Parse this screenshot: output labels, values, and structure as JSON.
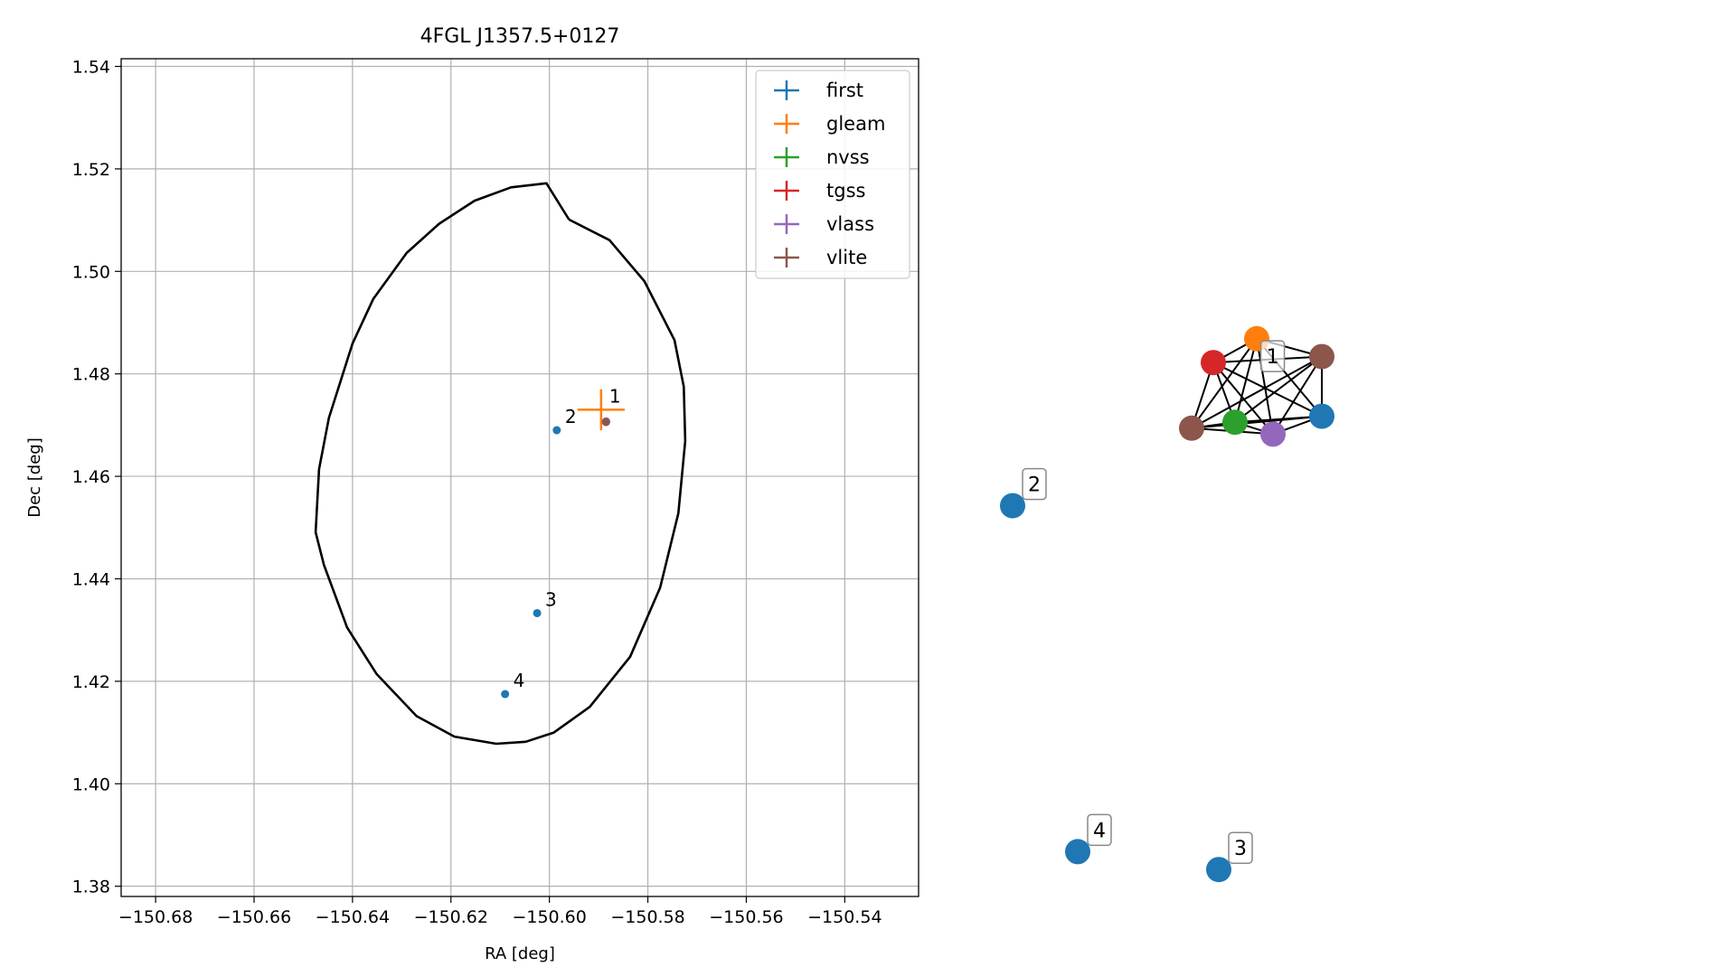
{
  "chart_data": [
    {
      "type": "scatter",
      "title": "4FGL J1357.5+0127",
      "xlabel": "RA [deg]",
      "ylabel": "Dec [deg]",
      "xlim": [
        -150.687,
        -150.525
      ],
      "ylim": [
        1.378,
        1.5415
      ],
      "xticks": [
        -150.68,
        -150.66,
        -150.64,
        -150.62,
        -150.6,
        -150.58,
        -150.56,
        -150.54
      ],
      "xtick_labels": [
        "−150.68",
        "−150.66",
        "−150.64",
        "−150.62",
        "−150.60",
        "−150.58",
        "−150.56",
        "−150.54"
      ],
      "yticks": [
        1.38,
        1.4,
        1.42,
        1.44,
        1.46,
        1.48,
        1.5,
        1.52,
        1.54
      ],
      "ytick_labels": [
        "1.38",
        "1.40",
        "1.42",
        "1.44",
        "1.46",
        "1.48",
        "1.50",
        "1.52",
        "1.54"
      ],
      "grid": true,
      "legend_position": "top-right",
      "series": [
        {
          "name": "first",
          "color": "#1f77b4",
          "points": [
            {
              "ra": -150.5985,
              "dec": 1.469,
              "label": "2"
            },
            {
              "ra": -150.6025,
              "dec": 1.4333,
              "label": "3"
            },
            {
              "ra": -150.609,
              "dec": 1.4175,
              "label": "4"
            },
            {
              "ra": -150.5885,
              "dec": 1.4706,
              "label": ""
            }
          ]
        },
        {
          "name": "gleam",
          "color": "#ff7f0e",
          "points": [
            {
              "ra": -150.5895,
              "dec": 1.473,
              "label": "1",
              "err_ra": 0.0048,
              "err_dec": 0.004
            }
          ]
        },
        {
          "name": "nvss",
          "color": "#2ca02c",
          "points": [
            {
              "ra": -150.5885,
              "dec": 1.4707,
              "label": ""
            }
          ]
        },
        {
          "name": "tgss",
          "color": "#d62728",
          "points": [
            {
              "ra": -150.5885,
              "dec": 1.4707,
              "label": ""
            }
          ]
        },
        {
          "name": "vlass",
          "color": "#9467bd",
          "points": [
            {
              "ra": -150.5885,
              "dec": 1.4707,
              "label": ""
            }
          ]
        },
        {
          "name": "vlite",
          "color": "#8c564b",
          "points": [
            {
              "ra": -150.5885,
              "dec": 1.4706,
              "label": ""
            }
          ]
        }
      ],
      "ellipse": {
        "center_ra": -150.6006,
        "center_dec": 1.4592,
        "color": "#000000",
        "outline": [
          [
            -150.596,
            1.5101
          ],
          [
            -150.5878,
            1.5061
          ],
          [
            -150.5807,
            1.4981
          ],
          [
            -150.5746,
            1.4866
          ],
          [
            -150.5727,
            1.4775
          ],
          [
            -150.5724,
            1.4669
          ],
          [
            -150.5738,
            1.4528
          ],
          [
            -150.5775,
            1.4383
          ],
          [
            -150.5836,
            1.4248
          ],
          [
            -150.5918,
            1.415
          ],
          [
            -150.5991,
            1.41
          ],
          [
            -150.6048,
            1.4082
          ],
          [
            -150.6108,
            1.4078
          ],
          [
            -150.6193,
            1.4092
          ],
          [
            -150.627,
            1.4132
          ],
          [
            -150.6351,
            1.4214
          ],
          [
            -150.6411,
            1.4305
          ],
          [
            -150.6458,
            1.4427
          ],
          [
            -150.6475,
            1.4491
          ],
          [
            -150.6468,
            1.4614
          ],
          [
            -150.6448,
            1.4714
          ],
          [
            -150.64,
            1.4859
          ],
          [
            -150.6358,
            1.4946
          ],
          [
            -150.629,
            1.5036
          ],
          [
            -150.6224,
            1.5093
          ],
          [
            -150.6152,
            1.5138
          ],
          [
            -150.6078,
            1.5164
          ],
          [
            -150.6006,
            1.5172
          ],
          [
            -150.596,
            1.5101
          ]
        ]
      }
    },
    {
      "type": "network",
      "nodes": [
        {
          "id": "n_gleam",
          "color": "#ff7f0e",
          "x": 0.5,
          "y": 0.08,
          "label": ""
        },
        {
          "id": "n_vlite_a",
          "color": "#8c564b",
          "x": 0.62,
          "y": 0.11,
          "label": ""
        },
        {
          "id": "n_tgss",
          "color": "#d62728",
          "x": 0.42,
          "y": 0.12,
          "label": ""
        },
        {
          "id": "n_first1",
          "color": "#1f77b4",
          "x": 0.62,
          "y": 0.21,
          "label": ""
        },
        {
          "id": "n_nvss",
          "color": "#2ca02c",
          "x": 0.46,
          "y": 0.22,
          "label": ""
        },
        {
          "id": "n_vlite_b",
          "color": "#8c564b",
          "x": 0.38,
          "y": 0.23,
          "label": ""
        },
        {
          "id": "n_vlass",
          "color": "#9467bd",
          "x": 0.53,
          "y": 0.24,
          "label": ""
        },
        {
          "id": "n_first2",
          "color": "#1f77b4",
          "x": 0.05,
          "y": 0.36,
          "label": "2"
        },
        {
          "id": "n_first4",
          "color": "#1f77b4",
          "x": 0.17,
          "y": 0.94,
          "label": "4"
        },
        {
          "id": "n_first3",
          "color": "#1f77b4",
          "x": 0.43,
          "y": 0.97,
          "label": "3"
        }
      ],
      "cluster_label": "1",
      "edges": "complete graph among the 7 nodes of cluster 1"
    }
  ]
}
